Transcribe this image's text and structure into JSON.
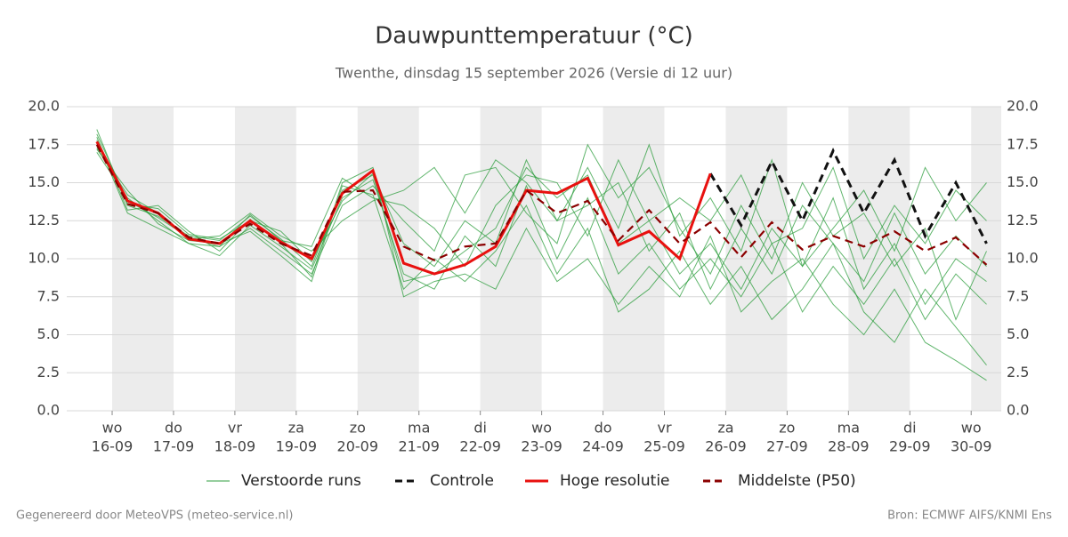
{
  "chart_data": {
    "type": "line",
    "title": "Dauwpunttemperatuur (°C)",
    "subtitle": "Twenthe, dinsdag 15 september 2026 (Versie di 12 uur)",
    "footer_left": "Gegenereerd door MeteoVPS (meteo-service.nl)",
    "footer_right": "Bron: ECMWF AIFS/KNMI Ens",
    "x": [
      -0.25,
      0.25,
      0.75,
      1.25,
      1.75,
      2.25,
      2.75,
      3.25,
      3.75,
      4.25,
      4.75,
      5.25,
      5.75,
      6.25,
      6.75,
      7.25,
      7.75,
      8.25,
      8.75,
      9.25,
      9.75,
      10.25,
      10.75,
      11.25,
      11.75,
      12.25,
      12.75,
      13.25,
      13.75,
      14.25
    ],
    "xlim": [
      -0.74,
      14.49
    ],
    "xticks": [
      {
        "value": 0,
        "label": [
          "wo",
          "16-09"
        ]
      },
      {
        "value": 1,
        "label": [
          "do",
          "17-09"
        ]
      },
      {
        "value": 2,
        "label": [
          "vr",
          "18-09"
        ]
      },
      {
        "value": 3,
        "label": [
          "za",
          "19-09"
        ]
      },
      {
        "value": 4,
        "label": [
          "zo",
          "20-09"
        ]
      },
      {
        "value": 5,
        "label": [
          "ma",
          "21-09"
        ]
      },
      {
        "value": 6,
        "label": [
          "di",
          "22-09"
        ]
      },
      {
        "value": 7,
        "label": [
          "wo",
          "23-09"
        ]
      },
      {
        "value": 8,
        "label": [
          "do",
          "24-09"
        ]
      },
      {
        "value": 9,
        "label": [
          "vr",
          "25-09"
        ]
      },
      {
        "value": 10,
        "label": [
          "za",
          "26-09"
        ]
      },
      {
        "value": 11,
        "label": [
          "zo",
          "27-09"
        ]
      },
      {
        "value": 12,
        "label": [
          "ma",
          "28-09"
        ]
      },
      {
        "value": 13,
        "label": [
          "di",
          "29-09"
        ]
      },
      {
        "value": 14,
        "label": [
          "wo",
          "30-09"
        ]
      }
    ],
    "ylim": [
      0,
      20
    ],
    "yticks": [
      {
        "value": 0,
        "label": "0.0"
      },
      {
        "value": 2.5,
        "label": "2.5"
      },
      {
        "value": 5,
        "label": "5.0"
      },
      {
        "value": 7.5,
        "label": "7.5"
      },
      {
        "value": 10,
        "label": "10.0"
      },
      {
        "value": 12.5,
        "label": "12.5"
      },
      {
        "value": 15,
        "label": "15.0"
      },
      {
        "value": 17.5,
        "label": "17.5"
      },
      {
        "value": 20,
        "label": "20.0"
      }
    ],
    "grid": true,
    "members": {
      "name": "Verstoorde runs",
      "color": "#2e9e3e",
      "runs": [
        [
          18.5,
          13.5,
          12.8,
          11.5,
          11.2,
          12.8,
          11.3,
          9.5,
          14.5,
          15.5,
          8.5,
          9.0,
          10.5,
          12.0,
          16.0,
          14.0,
          15.5,
          11.0,
          12.5,
          9.0,
          11.0,
          8.0,
          12.0,
          9.5,
          14.0,
          8.0,
          11.0,
          7.0,
          10.0,
          8.5
        ],
        [
          17.0,
          14.0,
          12.5,
          11.0,
          10.8,
          12.0,
          10.5,
          9.0,
          13.5,
          14.8,
          12.5,
          10.5,
          15.5,
          16.0,
          13.0,
          11.0,
          17.5,
          14.0,
          16.0,
          12.0,
          9.0,
          13.5,
          10.0,
          15.0,
          11.5,
          13.0,
          9.5,
          12.0,
          6.0,
          10.5
        ],
        [
          18.0,
          13.2,
          13.5,
          11.8,
          10.5,
          12.6,
          11.0,
          8.8,
          15.0,
          16.0,
          7.5,
          8.5,
          9.0,
          8.0,
          12.0,
          8.5,
          10.0,
          7.0,
          9.5,
          7.5,
          11.5,
          6.5,
          8.5,
          10.0,
          7.0,
          5.0,
          8.0,
          4.5,
          3.3,
          2.0
        ],
        [
          17.3,
          14.2,
          13.0,
          11.3,
          11.5,
          13.0,
          11.5,
          10.5,
          12.5,
          13.8,
          14.5,
          16.0,
          13.0,
          16.5,
          15.0,
          12.5,
          16.0,
          12.0,
          17.5,
          11.5,
          14.0,
          10.5,
          16.5,
          9.5,
          12.0,
          14.5,
          10.5,
          16.0,
          12.5,
          15.0
        ],
        [
          17.8,
          13.0,
          12.0,
          11.0,
          10.2,
          12.2,
          10.8,
          9.3,
          14.0,
          15.2,
          9.0,
          8.0,
          11.5,
          9.5,
          14.8,
          10.0,
          14.0,
          9.0,
          11.0,
          8.0,
          10.0,
          7.5,
          11.0,
          6.5,
          9.5,
          7.0,
          10.0,
          6.0,
          9.0,
          7.0
        ],
        [
          17.6,
          13.6,
          13.3,
          11.6,
          11.3,
          12.5,
          11.8,
          9.8,
          13.8,
          15.6,
          11.0,
          9.5,
          12.5,
          11.0,
          16.5,
          12.5,
          13.5,
          15.0,
          10.5,
          13.0,
          8.0,
          12.0,
          9.0,
          13.5,
          11.0,
          8.5,
          13.0,
          9.0,
          11.5,
          9.5
        ],
        [
          17.2,
          14.5,
          12.3,
          11.2,
          11.0,
          11.8,
          10.2,
          8.5,
          14.8,
          14.2,
          8.0,
          10.0,
          8.5,
          10.5,
          13.5,
          9.0,
          12.0,
          6.5,
          8.0,
          10.5,
          7.0,
          9.5,
          6.0,
          8.0,
          11.0,
          6.5,
          4.5,
          8.0,
          5.5,
          3.0
        ],
        [
          18.2,
          13.8,
          12.7,
          11.4,
          10.8,
          12.9,
          11.2,
          10.8,
          15.3,
          14.0,
          13.5,
          12.0,
          9.5,
          13.5,
          15.5,
          15.0,
          11.5,
          16.5,
          12.5,
          14.0,
          12.5,
          15.5,
          11.0,
          12.0,
          16.0,
          10.0,
          13.5,
          11.0,
          14.5,
          12.5
        ]
      ]
    },
    "series": [
      {
        "name": "Controle",
        "color": "#111111",
        "dash": true,
        "values": [
          null,
          null,
          null,
          null,
          null,
          null,
          null,
          null,
          null,
          null,
          null,
          null,
          null,
          null,
          null,
          null,
          null,
          null,
          null,
          null,
          15.6,
          12.2,
          16.4,
          12.5,
          17.1,
          13.0,
          16.5,
          11.5,
          15.0,
          11.0
        ]
      },
      {
        "name": "Hoge resolutie",
        "color": "#e8110f",
        "dash": false,
        "values": [
          17.7,
          13.8,
          13.0,
          11.3,
          11.0,
          12.5,
          11.1,
          10.0,
          14.3,
          15.8,
          9.7,
          9.0,
          9.6,
          10.8,
          14.5,
          14.3,
          15.3,
          10.9,
          11.8,
          10.0,
          15.6,
          null,
          null,
          null,
          null,
          null,
          null,
          null,
          null,
          null
        ]
      },
      {
        "name": "Middelste (P50)",
        "color": "#8b0000",
        "dash": true,
        "values": [
          17.5,
          13.6,
          13.0,
          11.4,
          11.0,
          12.3,
          11.0,
          10.2,
          14.4,
          14.5,
          10.8,
          9.9,
          10.8,
          11.0,
          14.5,
          13.0,
          13.8,
          11.2,
          13.2,
          11.0,
          12.4,
          10.1,
          12.4,
          10.6,
          11.5,
          10.8,
          11.8,
          10.5,
          11.4,
          9.6
        ]
      }
    ]
  }
}
